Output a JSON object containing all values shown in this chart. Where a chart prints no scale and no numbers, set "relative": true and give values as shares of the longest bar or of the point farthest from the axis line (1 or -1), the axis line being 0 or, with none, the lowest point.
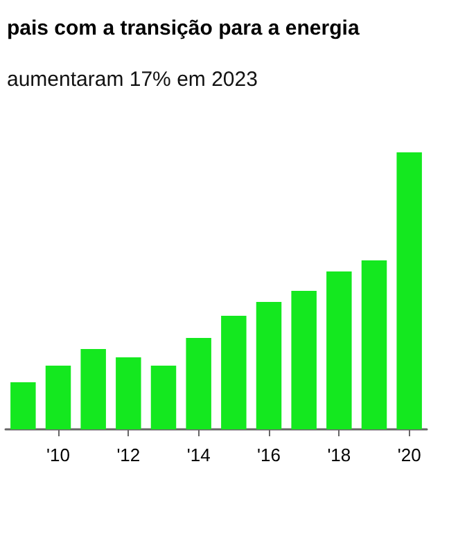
{
  "chart_data": {
    "type": "bar",
    "relative": true,
    "title": "pais com a transição para a energia",
    "subtitle": "aumentaram 17% em 2023",
    "categories": [
      null,
      "'10",
      null,
      "'12",
      null,
      "'14",
      null,
      "'16",
      null,
      "'18",
      null,
      "'20"
    ],
    "values": [
      0.17,
      0.23,
      0.29,
      0.26,
      0.23,
      0.33,
      0.41,
      0.46,
      0.5,
      0.57,
      0.61,
      1
    ],
    "color": "#14e81f"
  }
}
